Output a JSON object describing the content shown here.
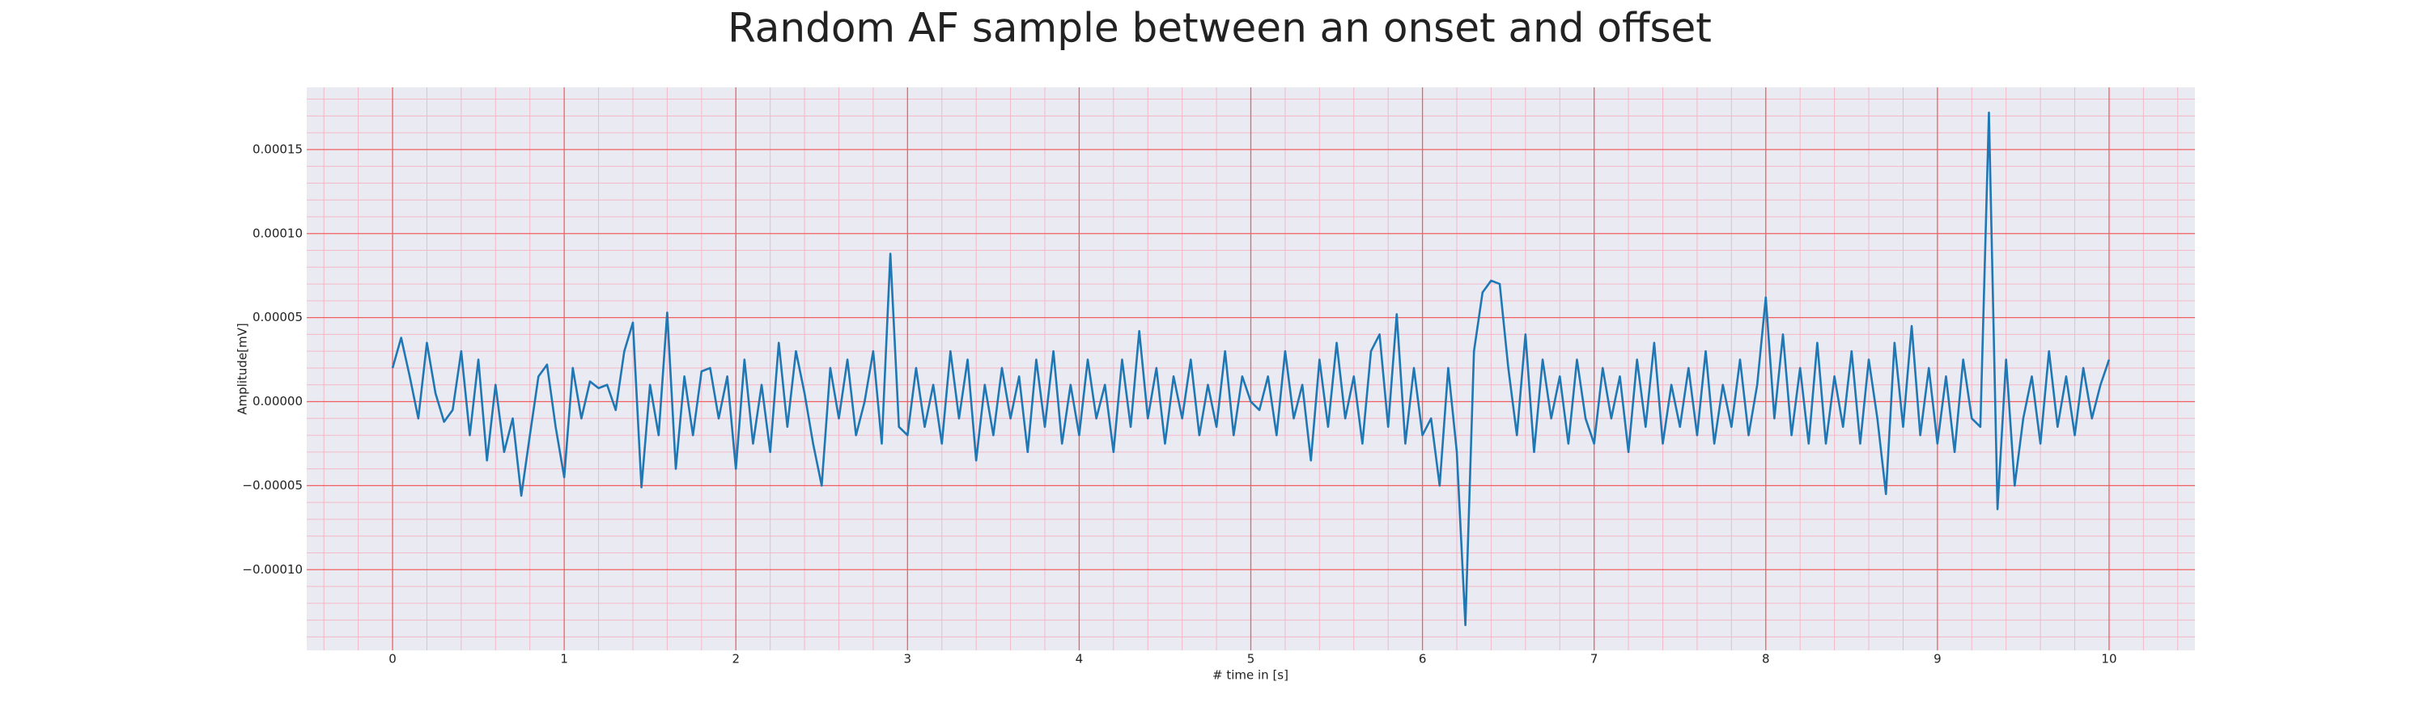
{
  "chart_data": {
    "type": "line",
    "title": "Random AF sample between an onset and offset",
    "xlabel": "# time in [s]",
    "ylabel": "Amplitude[mV]",
    "color": "#1f77b4",
    "grid": true,
    "xlim": [
      -0.5,
      10.5
    ],
    "ylim": [
      -0.000148,
      0.000187
    ],
    "xticks": [
      0,
      1,
      2,
      3,
      4,
      5,
      6,
      7,
      8,
      9,
      10
    ],
    "yticks": [
      {
        "value": -0.0001,
        "label": "−0.00010"
      },
      {
        "value": -5e-05,
        "label": "−0.00005"
      },
      {
        "value": 0,
        "label": "0.00000"
      },
      {
        "value": 5e-05,
        "label": "0.00005"
      },
      {
        "value": 0.0001,
        "label": "0.00010"
      },
      {
        "value": 0.00015,
        "label": "0.00015"
      }
    ],
    "xminorticks": [
      -0.4,
      -0.2,
      0.2,
      0.4,
      0.6,
      0.8,
      1.2,
      1.4,
      1.6,
      1.8,
      2.2,
      2.4,
      2.6,
      2.8,
      3.2,
      3.4,
      3.6,
      3.8,
      4.2,
      4.4,
      4.6,
      4.8,
      5.2,
      5.4,
      5.6,
      5.8,
      6.2,
      6.4,
      6.6,
      6.8,
      7.2,
      7.4,
      7.6,
      7.8,
      8.2,
      8.4,
      8.6,
      8.8,
      9.2,
      9.4,
      9.6,
      9.8,
      10.2,
      10.4
    ],
    "yminorticks": [
      -0.00014,
      -0.00013,
      -0.00012,
      -0.00011,
      -9e-05,
      -8e-05,
      -7e-05,
      -6e-05,
      -4e-05,
      -3e-05,
      -2e-05,
      -1e-05,
      1e-05,
      2e-05,
      3e-05,
      4e-05,
      6e-05,
      7e-05,
      8e-05,
      9e-05,
      0.00011,
      0.00012,
      0.00013,
      0.00014,
      0.00016,
      0.00017,
      0.00018
    ],
    "x": [
      0,
      0.05,
      0.1,
      0.15,
      0.2,
      0.25,
      0.3,
      0.35,
      0.4,
      0.45,
      0.5,
      0.55,
      0.6,
      0.65,
      0.7,
      0.75,
      0.8,
      0.85,
      0.9,
      0.95,
      1,
      1.05,
      1.1,
      1.15,
      1.2,
      1.25,
      1.3,
      1.35,
      1.4,
      1.45,
      1.5,
      1.55,
      1.6,
      1.65,
      1.7,
      1.75,
      1.8,
      1.85,
      1.9,
      1.95,
      2,
      2.05,
      2.1,
      2.15,
      2.2,
      2.25,
      2.3,
      2.35,
      2.4,
      2.45,
      2.5,
      2.55,
      2.6,
      2.65,
      2.7,
      2.75,
      2.8,
      2.85,
      2.9,
      2.95,
      3,
      3.05,
      3.1,
      3.15,
      3.2,
      3.25,
      3.3,
      3.35,
      3.4,
      3.45,
      3.5,
      3.55,
      3.6,
      3.65,
      3.7,
      3.75,
      3.8,
      3.85,
      3.9,
      3.95,
      4,
      4.05,
      4.1,
      4.15,
      4.2,
      4.25,
      4.3,
      4.35,
      4.4,
      4.45,
      4.5,
      4.55,
      4.6,
      4.65,
      4.7,
      4.75,
      4.8,
      4.85,
      4.9,
      4.95,
      5,
      5.05,
      5.1,
      5.15,
      5.2,
      5.25,
      5.3,
      5.35,
      5.4,
      5.45,
      5.5,
      5.55,
      5.6,
      5.65,
      5.7,
      5.75,
      5.8,
      5.85,
      5.9,
      5.95,
      6,
      6.05,
      6.1,
      6.15,
      6.2,
      6.25,
      6.3,
      6.35,
      6.4,
      6.45,
      6.5,
      6.55,
      6.6,
      6.65,
      6.7,
      6.75,
      6.8,
      6.85,
      6.9,
      6.95,
      7,
      7.05,
      7.1,
      7.15,
      7.2,
      7.25,
      7.3,
      7.35,
      7.4,
      7.45,
      7.5,
      7.55,
      7.6,
      7.65,
      7.7,
      7.75,
      7.8,
      7.85,
      7.9,
      7.95,
      8,
      8.05,
      8.1,
      8.15,
      8.2,
      8.25,
      8.3,
      8.35,
      8.4,
      8.45,
      8.5,
      8.55,
      8.6,
      8.65,
      8.7,
      8.75,
      8.8,
      8.85,
      8.9,
      8.95,
      9,
      9.05,
      9.1,
      9.15,
      9.2,
      9.25,
      9.3,
      9.35,
      9.4,
      9.45,
      9.5,
      9.55,
      9.6,
      9.65,
      9.7,
      9.75,
      9.8,
      9.85,
      9.9,
      9.95,
      10
    ],
    "values": [
      2e-05,
      3.8e-05,
      1.5e-05,
      -1e-05,
      3.5e-05,
      5e-06,
      -1.2e-05,
      -5e-06,
      3e-05,
      -2e-05,
      2.5e-05,
      -3.5e-05,
      1e-05,
      -3e-05,
      -1e-05,
      -5.6e-05,
      -2e-05,
      1.5e-05,
      2.2e-05,
      -1.5e-05,
      -4.5e-05,
      2e-05,
      -1e-05,
      1.2e-05,
      8e-06,
      1e-05,
      -5e-06,
      3e-05,
      4.7e-05,
      -5.1e-05,
      1e-05,
      -2e-05,
      5.3e-05,
      -4e-05,
      1.5e-05,
      -2e-05,
      1.8e-05,
      2e-05,
      -1e-05,
      1.5e-05,
      -4e-05,
      2.5e-05,
      -2.5e-05,
      1e-05,
      -3e-05,
      3.5e-05,
      -1.5e-05,
      3e-05,
      5e-06,
      -2.5e-05,
      -5e-05,
      2e-05,
      -1e-05,
      2.5e-05,
      -2e-05,
      0,
      3e-05,
      -2.5e-05,
      8.8e-05,
      -1.5e-05,
      -2e-05,
      2e-05,
      -1.5e-05,
      1e-05,
      -2.5e-05,
      3e-05,
      -1e-05,
      2.5e-05,
      -3.5e-05,
      1e-05,
      -2e-05,
      2e-05,
      -1e-05,
      1.5e-05,
      -3e-05,
      2.5e-05,
      -1.5e-05,
      3e-05,
      -2.5e-05,
      1e-05,
      -2e-05,
      2.5e-05,
      -1e-05,
      1e-05,
      -3e-05,
      2.5e-05,
      -1.5e-05,
      4.2e-05,
      -1e-05,
      2e-05,
      -2.5e-05,
      1.5e-05,
      -1e-05,
      2.5e-05,
      -2e-05,
      1e-05,
      -1.5e-05,
      3e-05,
      -2e-05,
      1.5e-05,
      0,
      -5e-06,
      1.5e-05,
      -2e-05,
      3e-05,
      -1e-05,
      1e-05,
      -3.5e-05,
      2.5e-05,
      -1.5e-05,
      3.5e-05,
      -1e-05,
      1.5e-05,
      -2.5e-05,
      3e-05,
      4e-05,
      -1.5e-05,
      5.2e-05,
      -2.5e-05,
      2e-05,
      -2e-05,
      -1e-05,
      -5e-05,
      2e-05,
      -3e-05,
      -0.000133,
      3e-05,
      6.5e-05,
      7.2e-05,
      7e-05,
      2e-05,
      -2e-05,
      4e-05,
      -3e-05,
      2.5e-05,
      -1e-05,
      1.5e-05,
      -2.5e-05,
      2.5e-05,
      -1e-05,
      -2.5e-05,
      2e-05,
      -1e-05,
      1.5e-05,
      -3e-05,
      2.5e-05,
      -1.5e-05,
      3.5e-05,
      -2.5e-05,
      1e-05,
      -1.5e-05,
      2e-05,
      -2e-05,
      3e-05,
      -2.5e-05,
      1e-05,
      -1.5e-05,
      2.5e-05,
      -2e-05,
      1e-05,
      6.2e-05,
      -1e-05,
      4e-05,
      -2e-05,
      2e-05,
      -2.5e-05,
      3.5e-05,
      -2.5e-05,
      1.5e-05,
      -1.5e-05,
      3e-05,
      -2.5e-05,
      2.5e-05,
      -1e-05,
      -5.5e-05,
      3.5e-05,
      -1.5e-05,
      4.5e-05,
      -2e-05,
      2e-05,
      -2.5e-05,
      1.5e-05,
      -3e-05,
      2.5e-05,
      -1e-05,
      -1.5e-05,
      0.000172,
      -6.4e-05,
      2.5e-05,
      -5e-05,
      -1e-05,
      1.5e-05,
      -2.5e-05,
      3e-05,
      -1.5e-05,
      1.5e-05,
      -2e-05,
      2e-05,
      -1e-05,
      1e-05,
      2.5e-05
    ]
  }
}
